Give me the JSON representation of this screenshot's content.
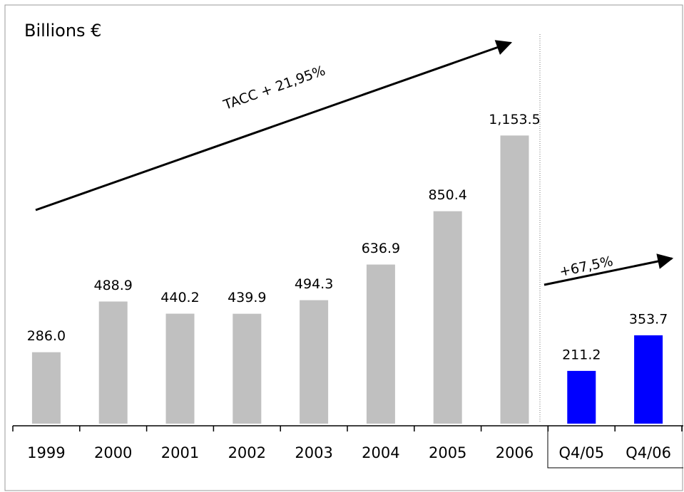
{
  "chart_data": {
    "type": "bar",
    "title": "Billions €",
    "categories": [
      "1999",
      "2000",
      "2001",
      "2002",
      "2003",
      "2004",
      "2005",
      "2006",
      "Q4/05",
      "Q4/06"
    ],
    "values": [
      286.0,
      488.9,
      440.2,
      439.9,
      494.3,
      636.9,
      850.4,
      1153.5,
      211.2,
      353.7
    ],
    "value_labels": [
      "286.0",
      "488.9",
      "440.2",
      "439.9",
      "494.3",
      "636.9",
      "850.4",
      "1,153.5",
      "211.2",
      "353.7"
    ],
    "colors": [
      "#c0c0c0",
      "#c0c0c0",
      "#c0c0c0",
      "#c0c0c0",
      "#c0c0c0",
      "#c0c0c0",
      "#c0c0c0",
      "#c0c0c0",
      "#0000ff",
      "#0000ff"
    ],
    "ylim": [
      0,
      1200
    ],
    "annotations": [
      "TACC + 21,95%",
      "+67,5%"
    ]
  }
}
